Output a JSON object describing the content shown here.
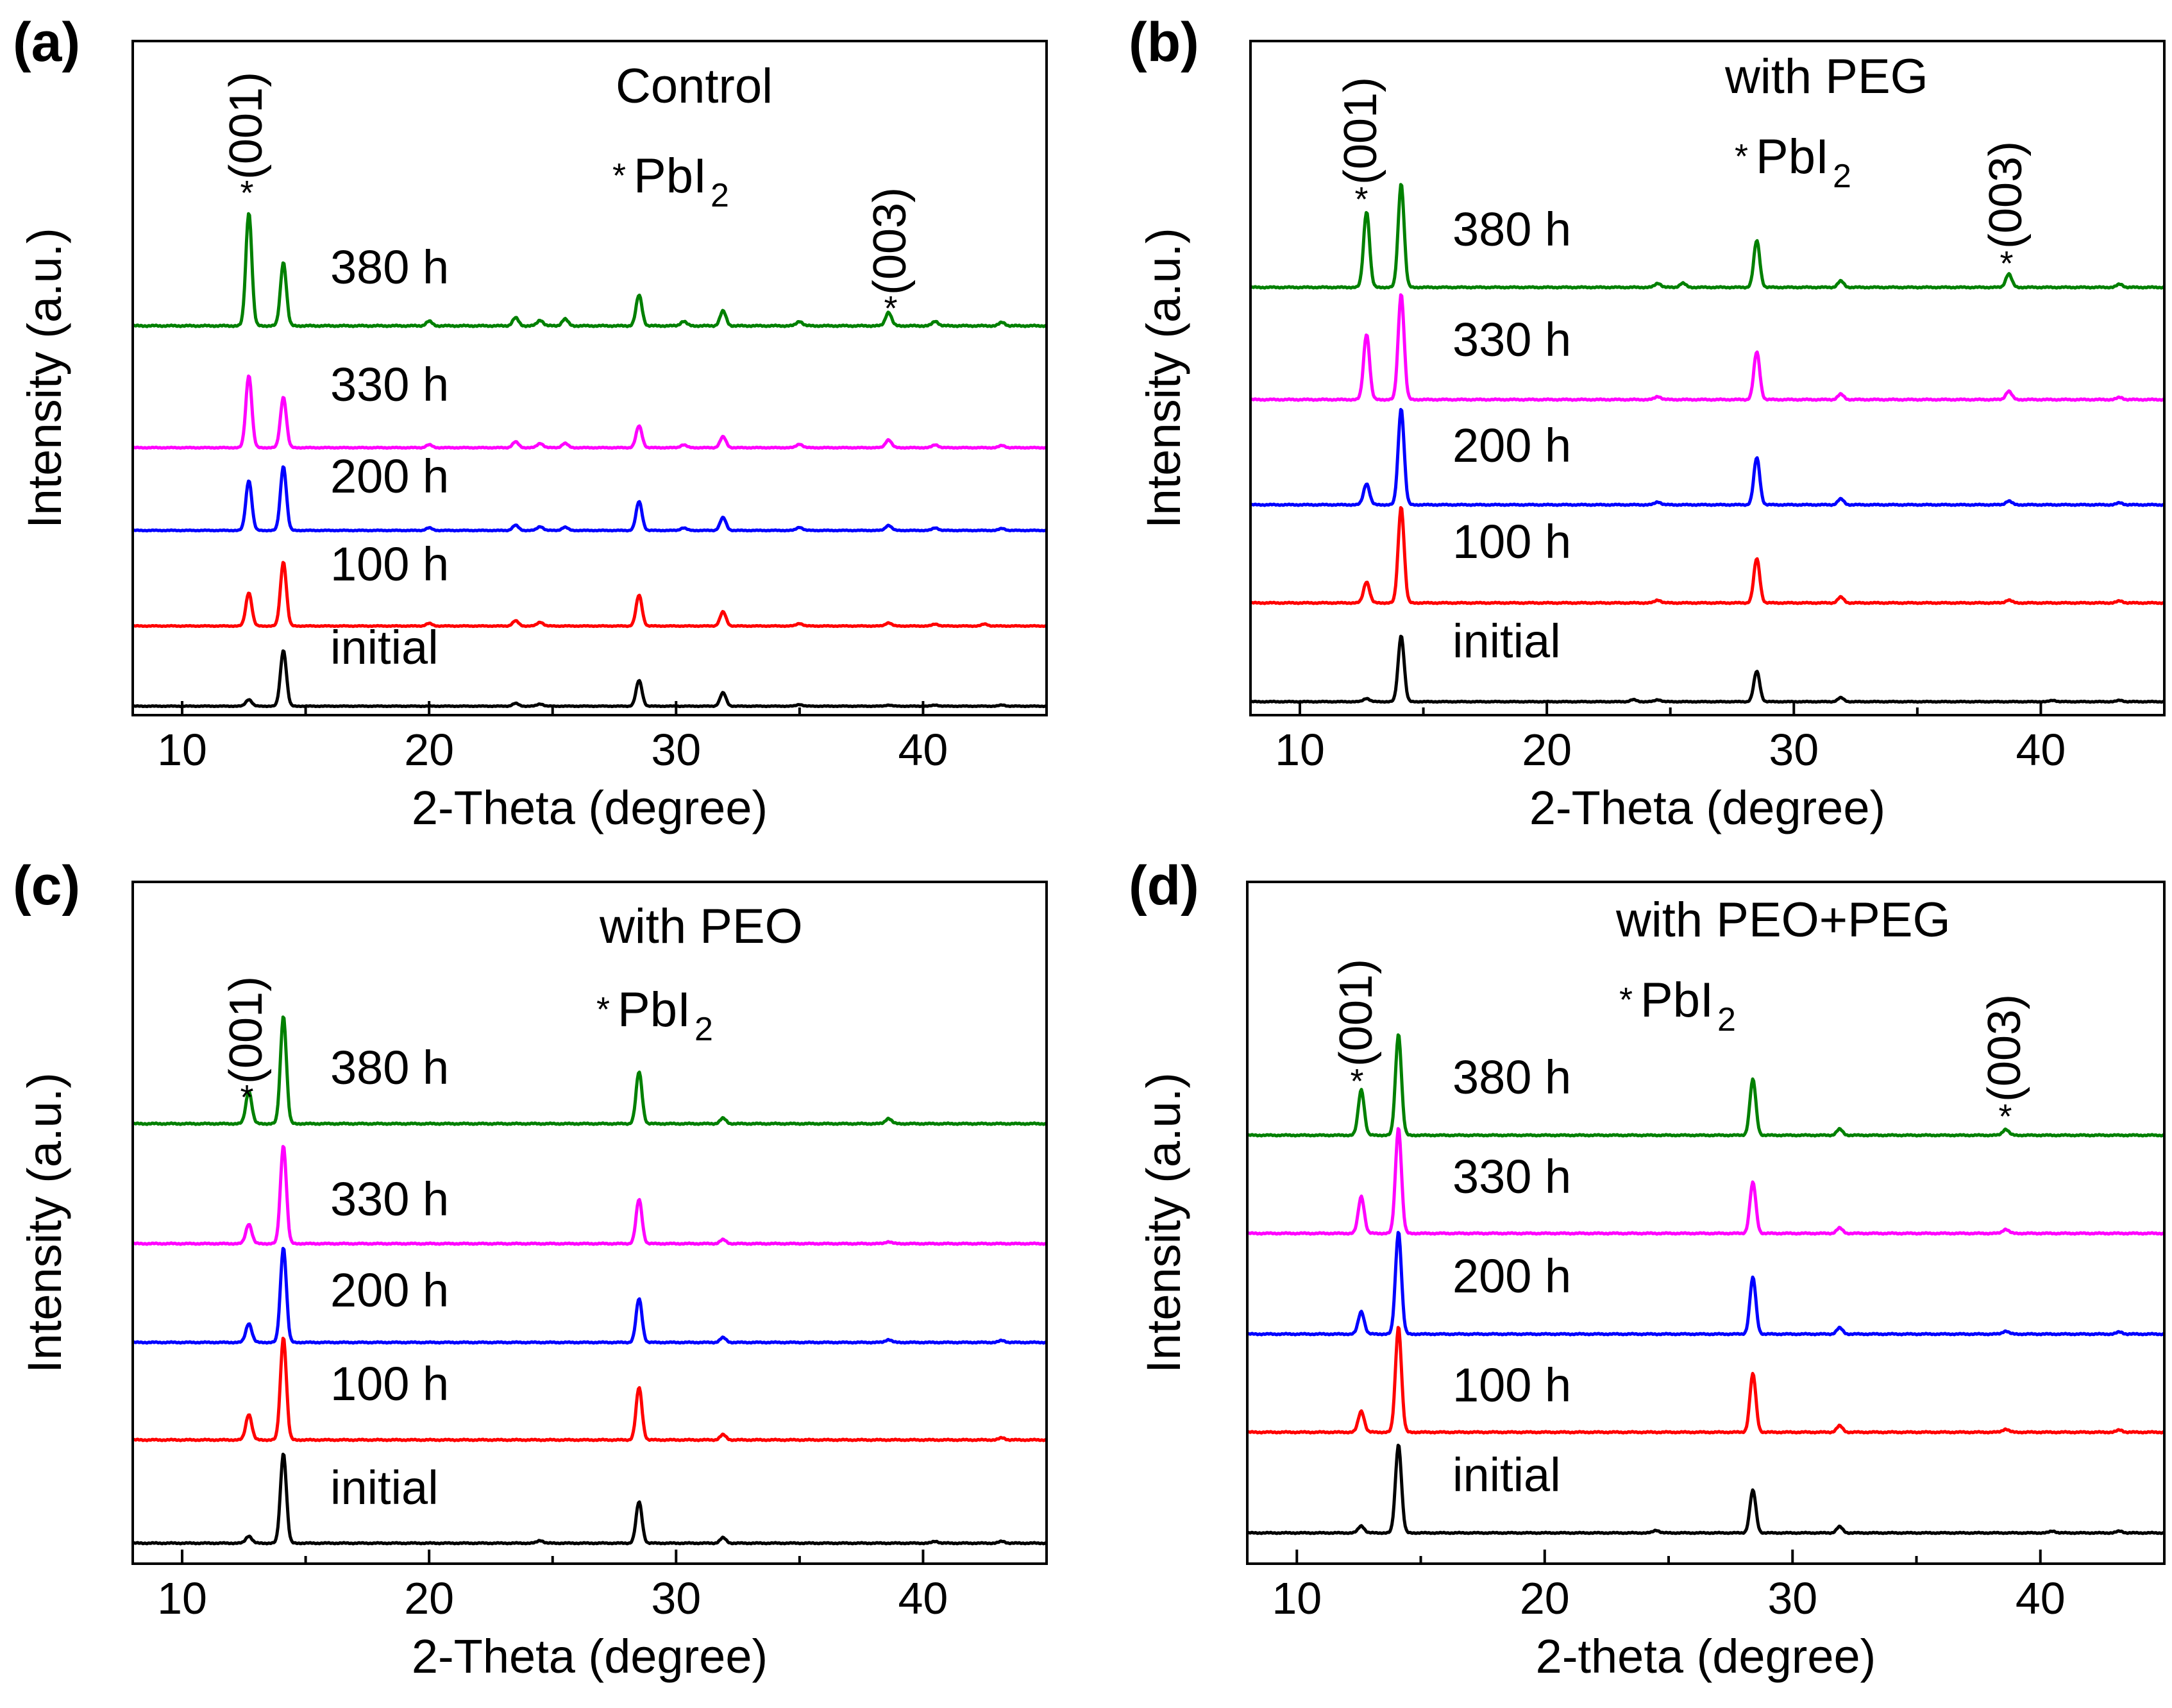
{
  "chart_data": [
    {
      "panel": "(a)",
      "type": "line",
      "title": "",
      "xlabel": "2-Theta (degree)",
      "ylabel": "Intensity (a.u.)",
      "xlim": [
        8,
        45
      ],
      "xticks": [
        "10",
        "20",
        "30",
        "40"
      ],
      "legend_title": "Control",
      "marker_note": {
        "star": "*",
        "text": "PbI",
        "sub": "2"
      },
      "peak_labels": [
        {
          "text": "(001)",
          "x": 12.7
        },
        {
          "text": "(003)",
          "x": 38.6
        }
      ],
      "series": [
        {
          "name": "initial",
          "color": "#000000",
          "peaks": [
            [
              12.7,
              0.12
            ],
            [
              14.1,
              1.0
            ],
            [
              23.5,
              0.05
            ],
            [
              24.5,
              0.04
            ],
            [
              28.5,
              0.46
            ],
            [
              31.9,
              0.24
            ],
            [
              35.0,
              0.03
            ],
            [
              38.6,
              0.02
            ],
            [
              40.5,
              0.02
            ],
            [
              43.2,
              0.02
            ]
          ]
        },
        {
          "name": "100 h",
          "color": "#ff0000",
          "peaks": [
            [
              12.7,
              0.52
            ],
            [
              14.1,
              1.0
            ],
            [
              20.0,
              0.04
            ],
            [
              23.5,
              0.08
            ],
            [
              24.5,
              0.06
            ],
            [
              28.5,
              0.48
            ],
            [
              31.9,
              0.22
            ],
            [
              35.0,
              0.04
            ],
            [
              38.6,
              0.05
            ],
            [
              40.5,
              0.03
            ],
            [
              42.5,
              0.03
            ]
          ]
        },
        {
          "name": "200 h",
          "color": "#0000ff",
          "peaks": [
            [
              12.7,
              0.78
            ],
            [
              14.1,
              1.0
            ],
            [
              20.0,
              0.04
            ],
            [
              23.5,
              0.08
            ],
            [
              24.5,
              0.06
            ],
            [
              25.5,
              0.05
            ],
            [
              28.5,
              0.45
            ],
            [
              30.3,
              0.04
            ],
            [
              31.9,
              0.2
            ],
            [
              35.0,
              0.05
            ],
            [
              38.6,
              0.08
            ],
            [
              40.5,
              0.04
            ],
            [
              43.2,
              0.03
            ]
          ]
        },
        {
          "name": "330 h",
          "color": "#ff00ff",
          "peaks": [
            [
              12.7,
              1.0
            ],
            [
              14.1,
              0.7
            ],
            [
              20.0,
              0.04
            ],
            [
              23.5,
              0.08
            ],
            [
              24.5,
              0.06
            ],
            [
              25.5,
              0.06
            ],
            [
              28.5,
              0.3
            ],
            [
              30.3,
              0.04
            ],
            [
              31.9,
              0.15
            ],
            [
              35.0,
              0.05
            ],
            [
              38.6,
              0.11
            ],
            [
              40.5,
              0.04
            ],
            [
              43.2,
              0.03
            ]
          ]
        },
        {
          "name": "380 h",
          "color": "#008000",
          "peaks": [
            [
              12.7,
              1.0
            ],
            [
              14.1,
              0.56
            ],
            [
              20.0,
              0.04
            ],
            [
              23.5,
              0.07
            ],
            [
              24.5,
              0.05
            ],
            [
              25.5,
              0.06
            ],
            [
              28.5,
              0.27
            ],
            [
              30.3,
              0.04
            ],
            [
              31.9,
              0.13
            ],
            [
              35.0,
              0.04
            ],
            [
              38.6,
              0.12
            ],
            [
              40.5,
              0.04
            ],
            [
              43.2,
              0.03
            ]
          ]
        }
      ]
    },
    {
      "panel": "(b)",
      "type": "line",
      "title": "",
      "xlabel": "2-Theta (degree)",
      "ylabel": "Intensity (a.u.)",
      "xlim": [
        8,
        45
      ],
      "xticks": [
        "10",
        "20",
        "30",
        "40"
      ],
      "legend_title": "with PEG",
      "marker_note": {
        "star": "*",
        "text": "PbI",
        "sub": "2"
      },
      "peak_labels": [
        {
          "text": "(001)",
          "x": 12.7
        },
        {
          "text": "(003)",
          "x": 38.7
        }
      ],
      "series": [
        {
          "name": "initial",
          "color": "#000000",
          "peaks": [
            [
              12.7,
              0.05
            ],
            [
              14.1,
              1.0
            ],
            [
              23.5,
              0.03
            ],
            [
              24.5,
              0.03
            ],
            [
              28.5,
              0.46
            ],
            [
              31.9,
              0.06
            ],
            [
              40.5,
              0.02
            ],
            [
              43.2,
              0.02
            ]
          ]
        },
        {
          "name": "100 h",
          "color": "#ff0000",
          "peaks": [
            [
              12.7,
              0.22
            ],
            [
              14.1,
              1.0
            ],
            [
              24.5,
              0.03
            ],
            [
              28.5,
              0.46
            ],
            [
              31.9,
              0.06
            ],
            [
              38.7,
              0.03
            ],
            [
              43.2,
              0.02
            ]
          ]
        },
        {
          "name": "200 h",
          "color": "#0000ff",
          "peaks": [
            [
              12.7,
              0.22
            ],
            [
              14.1,
              1.0
            ],
            [
              24.5,
              0.03
            ],
            [
              28.5,
              0.49
            ],
            [
              31.9,
              0.06
            ],
            [
              38.7,
              0.04
            ],
            [
              43.2,
              0.02
            ]
          ]
        },
        {
          "name": "330 h",
          "color": "#ff00ff",
          "peaks": [
            [
              12.7,
              0.62
            ],
            [
              14.1,
              1.0
            ],
            [
              24.5,
              0.03
            ],
            [
              28.5,
              0.45
            ],
            [
              31.9,
              0.05
            ],
            [
              38.7,
              0.08
            ],
            [
              43.2,
              0.02
            ]
          ]
        },
        {
          "name": "380 h",
          "color": "#008000",
          "peaks": [
            [
              12.7,
              0.73
            ],
            [
              14.1,
              1.0
            ],
            [
              24.5,
              0.04
            ],
            [
              25.5,
              0.04
            ],
            [
              28.5,
              0.45
            ],
            [
              31.9,
              0.06
            ],
            [
              38.7,
              0.13
            ],
            [
              43.2,
              0.03
            ]
          ]
        }
      ]
    },
    {
      "panel": "(c)",
      "type": "line",
      "title": "",
      "xlabel": "2-Theta (degree)",
      "ylabel": "Intensity (a.u.)",
      "xlim": [
        8,
        45
      ],
      "xticks": [
        "10",
        "20",
        "30",
        "40"
      ],
      "legend_title": "with PEO",
      "marker_note": {
        "star": "*",
        "text": "PbI",
        "sub": "2"
      },
      "peak_labels": [
        {
          "text": "(001)",
          "x": 12.7
        }
      ],
      "series": [
        {
          "name": "initial",
          "color": "#000000",
          "peaks": [
            [
              12.7,
              0.08
            ],
            [
              14.1,
              1.0
            ],
            [
              24.5,
              0.03
            ],
            [
              28.5,
              0.46
            ],
            [
              31.9,
              0.06
            ],
            [
              40.5,
              0.02
            ],
            [
              43.2,
              0.02
            ]
          ]
        },
        {
          "name": "100 h",
          "color": "#ff0000",
          "peaks": [
            [
              12.7,
              0.25
            ],
            [
              14.1,
              1.0
            ],
            [
              28.5,
              0.51
            ],
            [
              31.9,
              0.05
            ],
            [
              43.2,
              0.02
            ]
          ]
        },
        {
          "name": "200 h",
          "color": "#0000ff",
          "peaks": [
            [
              12.7,
              0.2
            ],
            [
              14.1,
              1.0
            ],
            [
              28.5,
              0.46
            ],
            [
              31.9,
              0.05
            ],
            [
              38.6,
              0.03
            ],
            [
              43.2,
              0.02
            ]
          ]
        },
        {
          "name": "330 h",
          "color": "#ff00ff",
          "peaks": [
            [
              12.7,
              0.2
            ],
            [
              14.1,
              1.0
            ],
            [
              28.5,
              0.45
            ],
            [
              31.9,
              0.04
            ],
            [
              38.6,
              0.02
            ]
          ]
        },
        {
          "name": "380 h",
          "color": "#008000",
          "peaks": [
            [
              12.7,
              0.3
            ],
            [
              14.1,
              1.0
            ],
            [
              28.5,
              0.48
            ],
            [
              31.9,
              0.05
            ],
            [
              38.6,
              0.05
            ]
          ]
        }
      ]
    },
    {
      "panel": "(d)",
      "type": "line",
      "title": "",
      "xlabel": "2-theta (degree)",
      "ylabel": "Intensity (a.u.)",
      "xlim": [
        8,
        45
      ],
      "xticks": [
        "10",
        "20",
        "30",
        "40"
      ],
      "legend_title": "with PEO+PEG",
      "marker_note": {
        "star": "*",
        "text": "PbI",
        "sub": "2"
      },
      "peak_labels": [
        {
          "text": "(001)",
          "x": 12.6
        },
        {
          "text": "(003)",
          "x": 38.6
        }
      ],
      "series": [
        {
          "name": "initial",
          "color": "#000000",
          "peaks": [
            [
              12.6,
              0.08
            ],
            [
              14.1,
              1.0
            ],
            [
              24.5,
              0.03
            ],
            [
              28.4,
              0.48
            ],
            [
              31.9,
              0.07
            ],
            [
              40.5,
              0.02
            ],
            [
              43.2,
              0.02
            ]
          ]
        },
        {
          "name": "100 h",
          "color": "#ff0000",
          "peaks": [
            [
              12.6,
              0.2
            ],
            [
              14.1,
              1.0
            ],
            [
              28.4,
              0.55
            ],
            [
              31.9,
              0.06
            ],
            [
              38.6,
              0.03
            ],
            [
              43.2,
              0.02
            ]
          ]
        },
        {
          "name": "200 h",
          "color": "#0000ff",
          "peaks": [
            [
              12.6,
              0.22
            ],
            [
              14.1,
              1.0
            ],
            [
              28.4,
              0.55
            ],
            [
              31.9,
              0.06
            ],
            [
              38.6,
              0.03
            ],
            [
              43.2,
              0.02
            ]
          ]
        },
        {
          "name": "330 h",
          "color": "#ff00ff",
          "peaks": [
            [
              12.6,
              0.35
            ],
            [
              14.1,
              1.0
            ],
            [
              28.4,
              0.48
            ],
            [
              31.9,
              0.05
            ],
            [
              38.6,
              0.04
            ]
          ]
        },
        {
          "name": "380 h",
          "color": "#008000",
          "peaks": [
            [
              12.6,
              0.45
            ],
            [
              14.1,
              1.0
            ],
            [
              28.4,
              0.55
            ],
            [
              31.9,
              0.06
            ],
            [
              38.6,
              0.06
            ]
          ]
        }
      ]
    }
  ]
}
